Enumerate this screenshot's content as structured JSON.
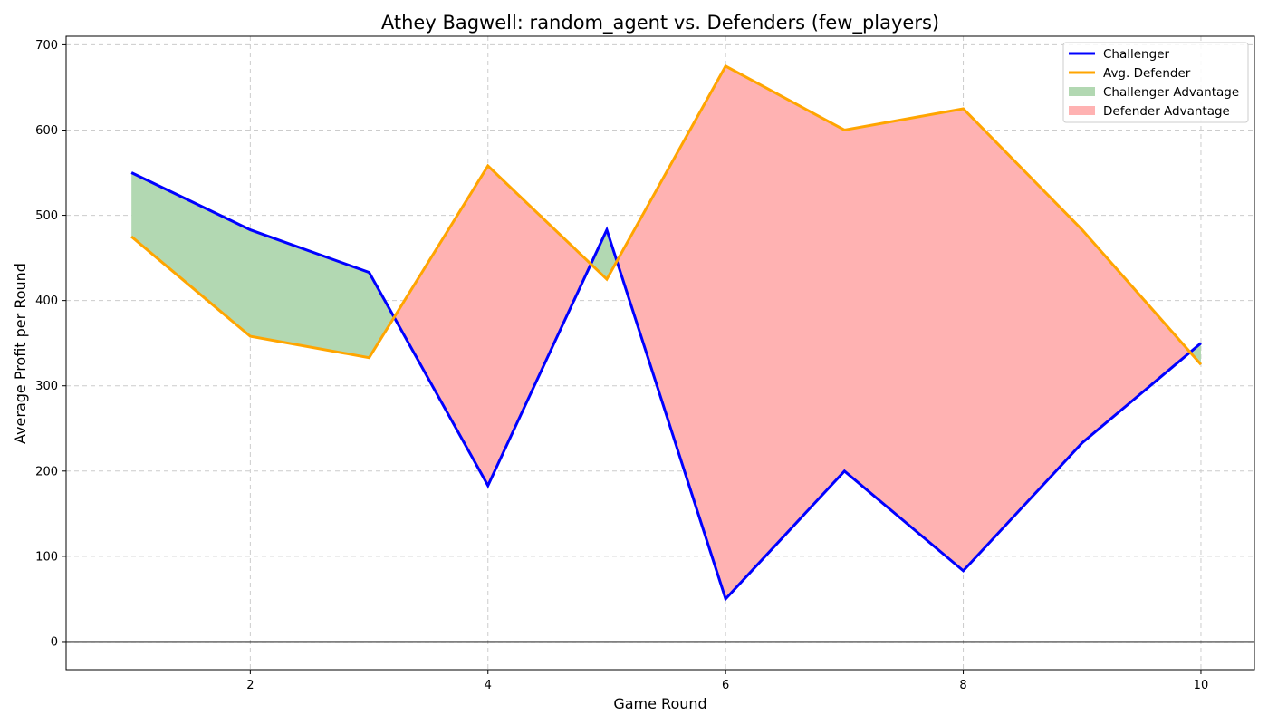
{
  "chart_data": {
    "type": "line",
    "title": "Athey Bagwell: random_agent vs. Defenders (few_players)",
    "xlabel": "Game Round",
    "ylabel": "Average Profit per Round",
    "x": [
      1,
      2,
      3,
      4,
      5,
      6,
      7,
      8,
      9,
      10
    ],
    "xticks": [
      2,
      4,
      6,
      8,
      10
    ],
    "yticks": [
      0,
      100,
      200,
      300,
      400,
      500,
      600,
      700
    ],
    "xlim": [
      0.45,
      10.45
    ],
    "ylim": [
      -33,
      710
    ],
    "grid": true,
    "zero_line": true,
    "legend_placement": "top-right",
    "series": [
      {
        "name": "Challenger",
        "color": "#0000ff",
        "values": [
          550,
          483,
          433,
          183,
          483,
          50,
          200,
          83,
          233,
          350
        ]
      },
      {
        "name": "Avg. Defender",
        "color": "#ffa500",
        "values": [
          475,
          358,
          333,
          558,
          425,
          675,
          600,
          625,
          483,
          325
        ]
      }
    ],
    "fills": [
      {
        "name": "Challenger Advantage",
        "color": "#b2d8b2",
        "condition": "challenger_above"
      },
      {
        "name": "Defender Advantage",
        "color": "#ffb2b2",
        "condition": "defender_above"
      }
    ]
  }
}
